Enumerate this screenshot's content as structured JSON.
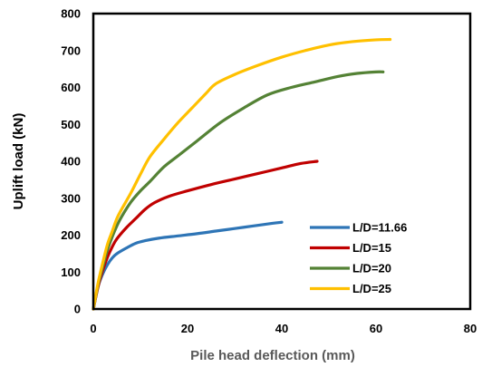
{
  "chart_data": {
    "type": "line",
    "title": "",
    "xlabel": "Pile head deflection (mm)",
    "ylabel": "Uplift load (kN)",
    "xlim": [
      0,
      80
    ],
    "ylim": [
      0,
      800
    ],
    "x_ticks": [
      0,
      20,
      40,
      60,
      80
    ],
    "y_ticks": [
      0,
      100,
      200,
      300,
      400,
      500,
      600,
      700,
      800
    ],
    "grid": false,
    "legend_position": "bottom-right",
    "series": [
      {
        "name": "L/D=11.66",
        "color": "#2E75B6",
        "x": [
          0,
          1,
          2,
          3,
          4,
          5,
          7,
          9,
          11,
          14,
          18,
          22,
          26,
          30,
          34,
          38,
          40
        ],
        "y": [
          0,
          60,
          95,
          120,
          138,
          150,
          165,
          178,
          185,
          192,
          198,
          204,
          211,
          218,
          225,
          232,
          235
        ]
      },
      {
        "name": "L/D=15",
        "color": "#C00000",
        "x": [
          0,
          1,
          2,
          3,
          4,
          5,
          7,
          9,
          11,
          13,
          16,
          20,
          25,
          30,
          35,
          40,
          44,
          47.5
        ],
        "y": [
          0,
          60,
          105,
          140,
          168,
          190,
          220,
          245,
          270,
          288,
          305,
          320,
          337,
          352,
          367,
          382,
          394,
          400
        ]
      },
      {
        "name": "L/D=20",
        "color": "#548235",
        "x": [
          0,
          1,
          2,
          3,
          4,
          5,
          6,
          8,
          10,
          12,
          15,
          18,
          22,
          27,
          32,
          37,
          42,
          47,
          52,
          56,
          60,
          61.5
        ],
        "y": [
          0,
          65,
          115,
          160,
          195,
          225,
          250,
          290,
          320,
          345,
          385,
          415,
          455,
          505,
          545,
          580,
          600,
          615,
          630,
          638,
          642,
          642
        ]
      },
      {
        "name": "L/D=25",
        "color": "#FFC000",
        "x": [
          0,
          1,
          2,
          3,
          4,
          5,
          6,
          8,
          10,
          12,
          15,
          18,
          21,
          24,
          26,
          30,
          35,
          40,
          45,
          50,
          55,
          60,
          63
        ],
        "y": [
          0,
          70,
          125,
          175,
          210,
          245,
          270,
          315,
          365,
          412,
          460,
          505,
          545,
          585,
          610,
          635,
          660,
          682,
          700,
          715,
          724,
          729,
          730
        ]
      }
    ]
  }
}
